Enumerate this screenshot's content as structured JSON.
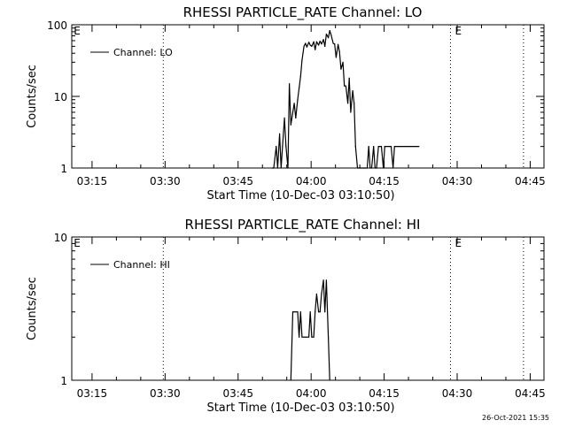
{
  "timestamp": "26-Oct-2021 15:35",
  "chart_data": [
    {
      "type": "line",
      "title": "RHESSI PARTICLE_RATE Channel: LO",
      "xlabel": "Start Time (10-Dec-03 03:10:50)",
      "ylabel": "Counts/sec",
      "yscale": "log",
      "xlim_min": [
        0,
        97
      ],
      "ylim": [
        1,
        100
      ],
      "xticks_min": [
        4.17,
        19.17,
        34.17,
        49.17,
        64.17,
        79.17,
        94.17
      ],
      "xtick_labels": [
        "03:15",
        "03:30",
        "03:45",
        "04:00",
        "04:15",
        "04:30",
        "04:45"
      ],
      "yticks": [
        1,
        10,
        100
      ],
      "ytick_labels": [
        "1",
        "10",
        "100"
      ],
      "event_lines_min": [
        18.8,
        77.8,
        92.8
      ],
      "event_labels": [
        {
          "x_min": 0.4,
          "text": "E"
        },
        {
          "x_min": 78.7,
          "text": "E"
        }
      ],
      "grid": false,
      "legend_position": "top-left",
      "series": [
        {
          "name": "Channel: LO",
          "x_min": [
            41.2,
            41.5,
            42.0,
            42.3,
            42.7,
            43.0,
            43.3,
            43.7,
            44.0,
            44.4,
            44.7,
            45.0,
            45.4,
            45.7,
            46.0,
            46.4,
            46.7,
            47.0,
            47.3,
            47.7,
            48.0,
            48.3,
            48.7,
            49.0,
            49.3,
            49.7,
            50.0,
            50.3,
            50.7,
            51.0,
            51.3,
            51.7,
            52.0,
            52.3,
            52.7,
            53.0,
            53.3,
            53.7,
            54.0,
            54.3,
            54.7,
            55.0,
            55.3,
            55.7,
            56.0,
            56.3,
            56.7,
            57.0,
            57.3,
            57.7,
            58.0,
            58.3,
            58.7,
            59.0,
            59.3,
            59.7,
            60.0,
            60.3,
            60.7,
            61.0,
            61.3,
            61.6,
            62.0,
            62.3,
            62.6,
            63.0,
            63.3,
            63.6,
            64.0,
            64.3,
            64.6,
            65.0,
            65.3,
            65.6,
            66.0,
            66.3,
            66.6,
            67.0,
            67.3,
            67.6,
            68.0,
            68.3,
            68.6,
            69.0,
            69.3,
            69.6,
            70.0,
            70.3,
            70.6,
            71.0,
            71.3
          ],
          "values": [
            1,
            1,
            2,
            1,
            3,
            1,
            2,
            5,
            2,
            1,
            15,
            4,
            6,
            8,
            5,
            9,
            13,
            19,
            32,
            50,
            55,
            49,
            57,
            52,
            50,
            58,
            45,
            58,
            52,
            59,
            54,
            62,
            50,
            74,
            66,
            83,
            71,
            55,
            54,
            35,
            53,
            42,
            24,
            30,
            14,
            14,
            8,
            18,
            6,
            12,
            8,
            2,
            1,
            1,
            1,
            1,
            1,
            1,
            1,
            2,
            1,
            1,
            2,
            1,
            1,
            2,
            2,
            2,
            1,
            2,
            2,
            2,
            2,
            2,
            1,
            2,
            2,
            2,
            2,
            2,
            2,
            2,
            2,
            2,
            2,
            2,
            2,
            2,
            2,
            2,
            2
          ]
        }
      ]
    },
    {
      "type": "line",
      "title": "RHESSI PARTICLE_RATE Channel: HI",
      "xlabel": "Start Time (10-Dec-03 03:10:50)",
      "ylabel": "Counts/sec",
      "yscale": "log",
      "xlim_min": [
        0,
        97
      ],
      "ylim": [
        1,
        10
      ],
      "xticks_min": [
        4.17,
        19.17,
        34.17,
        49.17,
        64.17,
        79.17,
        94.17
      ],
      "xtick_labels": [
        "03:15",
        "03:30",
        "03:45",
        "04:00",
        "04:15",
        "04:30",
        "04:45"
      ],
      "yticks": [
        1,
        10
      ],
      "ytick_labels": [
        "1",
        "10"
      ],
      "event_lines_min": [
        18.8,
        77.8,
        92.8
      ],
      "event_labels": [
        {
          "x_min": 0.4,
          "text": "E"
        },
        {
          "x_min": 78.7,
          "text": "E"
        }
      ],
      "grid": false,
      "legend_position": "top-left",
      "series": [
        {
          "name": "Channel: HI",
          "x_min": [
            45.0,
            45.4,
            45.7,
            46.0,
            46.4,
            46.7,
            47.0,
            47.3,
            47.7,
            48.0,
            48.3,
            48.7,
            49.0,
            49.3,
            49.7,
            50.0,
            50.3,
            50.7,
            51.0,
            51.3,
            51.7,
            52.0,
            52.3,
            52.7,
            53.0
          ],
          "values": [
            1,
            3,
            3,
            3,
            3,
            2,
            3,
            2,
            2,
            2,
            2,
            2,
            3,
            2,
            2,
            3,
            4,
            3,
            3,
            4,
            5,
            3,
            5,
            2,
            1
          ]
        }
      ]
    }
  ]
}
